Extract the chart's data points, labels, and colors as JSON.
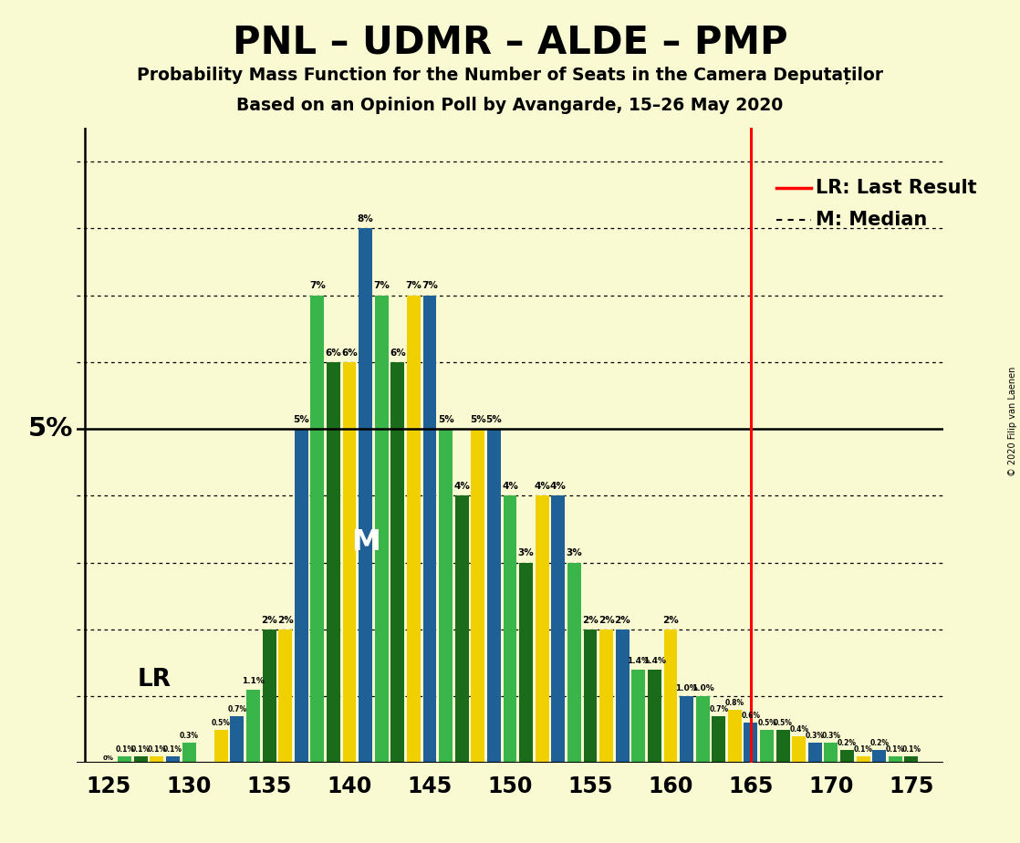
{
  "title": "PNL – UDMR – ALDE – PMP",
  "subtitle1": "Probability Mass Function for the Number of Seats in the Camera Deputaților",
  "subtitle2": "Based on an Opinion Poll by Avangarde, 15–26 May 2020",
  "background_color": "#FAFAD2",
  "seats": [
    125,
    126,
    127,
    128,
    129,
    130,
    131,
    132,
    133,
    134,
    135,
    136,
    137,
    138,
    139,
    140,
    141,
    142,
    143,
    144,
    145,
    146,
    147,
    148,
    149,
    150,
    151,
    152,
    153,
    154,
    155,
    156,
    157,
    158,
    159,
    160,
    161,
    162,
    163,
    164,
    165,
    166,
    167,
    168,
    169,
    170,
    171,
    172,
    173,
    174,
    175
  ],
  "values": [
    0.0,
    0.1,
    0.1,
    0.1,
    0.1,
    0.3,
    0.0,
    0.5,
    0.7,
    1.1,
    2.0,
    2.0,
    5.0,
    7.0,
    6.0,
    6.0,
    8.0,
    7.0,
    6.0,
    7.0,
    7.0,
    5.0,
    4.0,
    5.0,
    5.0,
    4.0,
    3.0,
    4.0,
    4.0,
    3.0,
    2.0,
    2.0,
    2.0,
    1.4,
    1.4,
    2.0,
    1.0,
    1.0,
    0.7,
    0.8,
    0.6,
    0.5,
    0.5,
    0.4,
    0.3,
    0.3,
    0.2,
    0.1,
    0.2,
    0.1,
    0.1
  ],
  "color_cycle": [
    "#1f6196",
    "#3ab54a",
    "#1a6b1a",
    "#f0d000"
  ],
  "xlim_left": 123.0,
  "xlim_right": 177.0,
  "ylim_top": 9.5,
  "xticks": [
    125,
    130,
    135,
    140,
    145,
    150,
    155,
    160,
    165,
    170,
    175
  ],
  "ytick_5pct": 5.0,
  "lr_line": 165,
  "median_seat": 141,
  "copyright": "© 2020 Filip van Laenen"
}
